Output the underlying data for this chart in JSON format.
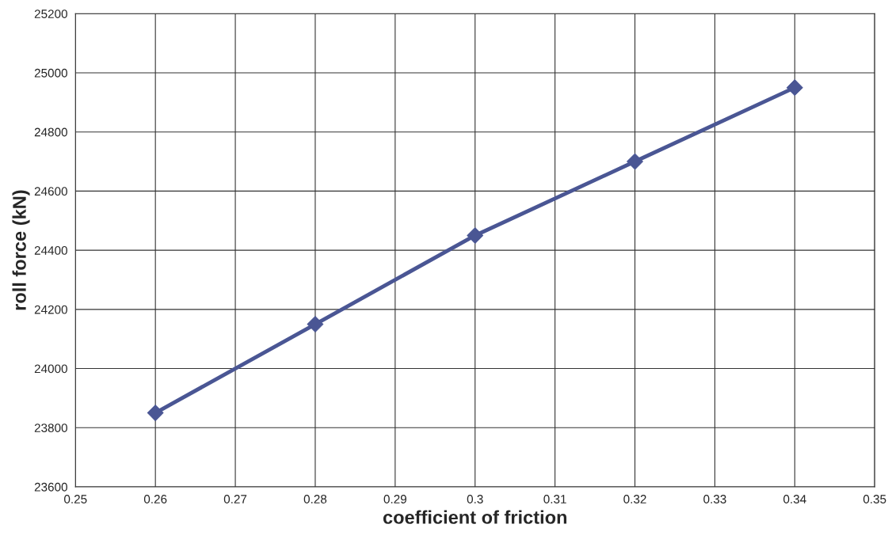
{
  "chart_data": {
    "type": "line",
    "xlabel": "coefficient of friction",
    "ylabel": "roll force (kN)",
    "x": [
      0.26,
      0.28,
      0.3,
      0.32,
      0.34
    ],
    "series": [
      {
        "color": "#4a5694",
        "values": [
          23850,
          24150,
          24450,
          24700,
          24950
        ]
      }
    ],
    "xlim": [
      0.25,
      0.35
    ],
    "xticks": [
      0.25,
      0.26,
      0.27,
      0.28,
      0.29,
      0.3,
      0.31,
      0.32,
      0.33,
      0.34,
      0.35
    ],
    "ylim": [
      23600,
      25200
    ],
    "yticks": [
      23600,
      23800,
      24000,
      24200,
      24400,
      24600,
      24800,
      25000,
      25200
    ],
    "grid": true,
    "marker": "diamond",
    "line_style": "solid"
  }
}
